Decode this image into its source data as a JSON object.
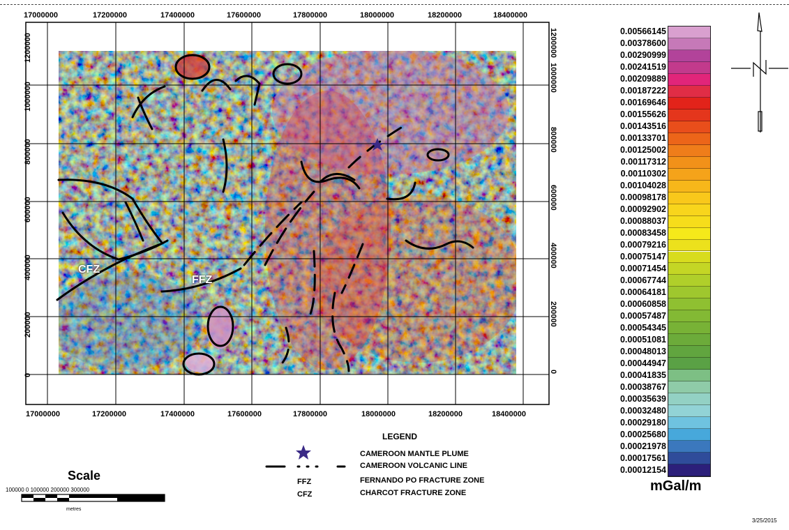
{
  "map": {
    "x_ticks": [
      "17000000",
      "17200000",
      "17400000",
      "17600000",
      "17800000",
      "18000000",
      "18200000",
      "18400000"
    ],
    "y_ticks_left": [
      "0",
      "200000",
      "400000",
      "600000",
      "800000",
      "1000000",
      "1200000"
    ],
    "y_ticks_right": [
      "0",
      "200000",
      "400000",
      "600000",
      "800000",
      "1000000",
      "1200000"
    ],
    "labels": {
      "cfz": "CFZ",
      "ffz": "FFZ"
    }
  },
  "colorbar": {
    "unit": "mGal/m",
    "labels": [
      "0.00566145",
      "0.00378600",
      "0.00290999",
      "0.00241519",
      "0.00209889",
      "0.00187222",
      "0.00169646",
      "0.00155626",
      "0.00143516",
      "0.00133701",
      "0.00125002",
      "0.00117312",
      "0.00110302",
      "0.00104028",
      "0.00098178",
      "0.00092902",
      "0.00088037",
      "0.00083458",
      "0.00079216",
      "0.00075147",
      "0.00071454",
      "0.00067744",
      "0.00064181",
      "0.00060858",
      "0.00057487",
      "0.00054345",
      "0.00051081",
      "0.00048013",
      "0.00044947",
      "0.00041835",
      "0.00038767",
      "0.00035639",
      "0.00032480",
      "0.00029180",
      "0.00025680",
      "0.00021978",
      "0.00017561",
      "0.00012154"
    ],
    "colors": [
      "#d9a0cf",
      "#c679b8",
      "#b2439a",
      "#c23a8c",
      "#e1257a",
      "#e02d46",
      "#e2231a",
      "#e4361c",
      "#e94e1b",
      "#ec6519",
      "#ef7d1a",
      "#f29119",
      "#f5a31a",
      "#f7b71a",
      "#f9c81b",
      "#f8d51c",
      "#f6dd1b",
      "#f5e91a",
      "#ece11c",
      "#d8dc1e",
      "#c4d625",
      "#b0cf2a",
      "#9fc72e",
      "#8fc031",
      "#83b934",
      "#78b236",
      "#6cab3a",
      "#61a53f",
      "#5aa145",
      "#7dbf84",
      "#8fcba8",
      "#93d1c4",
      "#92d3d6",
      "#6fc3e0",
      "#47a8db",
      "#3b78bd",
      "#2f4c9a",
      "#2c1f7a"
    ]
  },
  "legend": {
    "title": "LEGEND",
    "items": [
      "CAMEROON MANTLE PLUME",
      "CAMEROON VOLCANIC LINE",
      "FERNANDO PO FRACTURE ZONE",
      "CHARCOT FRACTURE ZONE"
    ],
    "abbr": [
      "FFZ",
      "CFZ"
    ]
  },
  "scale": {
    "title": "Scale",
    "numbers": "100000     0     100000 200000 300000",
    "unit": "metres"
  },
  "date": "3/25/2015"
}
